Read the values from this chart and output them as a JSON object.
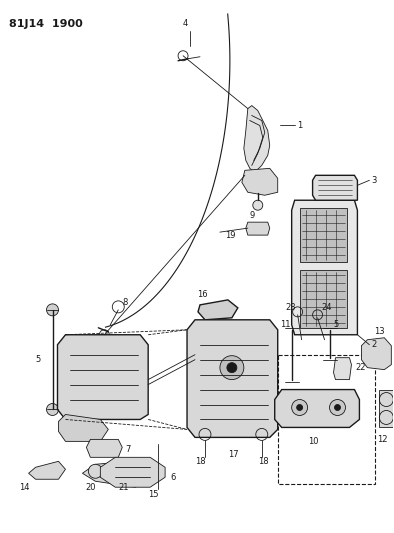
{
  "title": "81J14  1900",
  "bg_color": "#ffffff",
  "line_color": "#1a1a1a",
  "fig_width": 3.94,
  "fig_height": 5.33,
  "dpi": 100,
  "label_fs": 6.0,
  "title_fs": 8.0
}
